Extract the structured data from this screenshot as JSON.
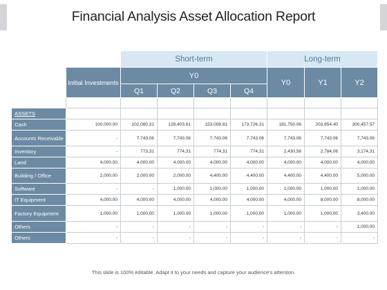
{
  "title": "Financial Analysis Asset Allocation Report",
  "header": {
    "short_term": "Short-term",
    "long_term": "Long-term",
    "initial_investments": "Initial Investments",
    "short_year": "Y0",
    "long_years": [
      "Y0",
      "Y1",
      "Y2"
    ],
    "quarters": [
      "Q1",
      "Q2",
      "Q3",
      "Q4"
    ]
  },
  "assets_label": "ASSETS",
  "rows": [
    {
      "label": "Cash",
      "values": [
        "100,000.00",
        "102,080.31",
        "128,403.81",
        "153,008.81",
        "173,726.31",
        "181,750.06",
        "203,854.40",
        "300,457.57"
      ]
    },
    {
      "label": "Accounts Receivable",
      "values": [
        "-",
        "7,743.06",
        "7,743.06",
        "7,743.06",
        "7,743.06",
        "7,743.06",
        "7,743.06",
        "7,743.06"
      ]
    },
    {
      "label": "Inventory",
      "values": [
        "-",
        "773,31",
        "774,31",
        "774,31",
        "774,31",
        "2,430,56",
        "2,784,06",
        "3,174,31"
      ]
    },
    {
      "label": "Land",
      "values": [
        "4,000.00",
        "4,000.00",
        "4,000.00",
        "4,000.00",
        "4,000.00",
        "4,000.00",
        "4,000.00",
        "4,000.00"
      ]
    },
    {
      "label": "Building / Office",
      "values": [
        "2,000.00",
        "2,000.00",
        "2,000.00",
        "4,400.00",
        "4,400.00",
        "4,400.00",
        "4,400.00",
        "5,000.00"
      ]
    },
    {
      "label": "Software",
      "values": [
        "-",
        "-",
        "1,000.00",
        "1,000.00",
        "1,000.00",
        "1,000.00",
        "1,000.00",
        "1,000.00"
      ]
    },
    {
      "label": "IT Equipment",
      "values": [
        "4,000.00",
        "4,000.00",
        "4,000.00",
        "4,000.00",
        "4,000.00",
        "4,000.00",
        "8,000.00",
        "8,000.00"
      ]
    },
    {
      "label": "Factory Equipment",
      "values": [
        "1,000.00",
        "1,000.00",
        "1,000.00",
        "1,000.00",
        "1,000.00",
        "1,000.00",
        "1,000.00",
        "3,400.00"
      ]
    },
    {
      "label": "Others",
      "values": [
        "-",
        "-",
        "-",
        "-",
        "-",
        "-",
        "-",
        "1,000.00"
      ]
    },
    {
      "label": "Others",
      "values": [
        "-",
        "-",
        "-",
        "-",
        "-",
        "-",
        "-",
        "-"
      ]
    }
  ],
  "footer": "This slide is 100% editable. Adapt it to your needs and capture your audience's attention."
}
